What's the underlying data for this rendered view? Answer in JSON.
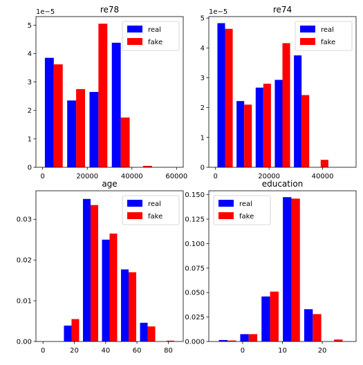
{
  "figure": {
    "background": "#ffffff"
  },
  "chart_data": [
    {
      "type": "bar",
      "title": "re78",
      "xlabel": "",
      "ylabel": "",
      "offset_text": "1e−5",
      "xlim": [
        -3000,
        63000
      ],
      "ylim": [
        0,
        5.3
      ],
      "xticks": [
        0,
        20000,
        40000,
        60000
      ],
      "xtick_labels": [
        "0",
        "20000",
        "40000",
        "60000"
      ],
      "yticks": [
        0,
        1,
        2,
        3,
        4,
        5
      ],
      "ytick_labels": [
        "0",
        "1",
        "2",
        "3",
        "4",
        "5"
      ],
      "bin_edges": [
        0,
        10000,
        20000,
        30000,
        40000,
        50000,
        60000
      ],
      "legend_position": "upper right",
      "series": [
        {
          "name": "real",
          "color": "#0000ff",
          "values": [
            3.85,
            2.35,
            2.65,
            4.38,
            0,
            0
          ]
        },
        {
          "name": "fake",
          "color": "#ff0000",
          "values": [
            3.62,
            2.75,
            5.05,
            1.75,
            0.05,
            0
          ]
        }
      ]
    },
    {
      "type": "bar",
      "title": "re74",
      "xlabel": "",
      "ylabel": "",
      "offset_text": "1e−5",
      "xlim": [
        -2500,
        52500
      ],
      "ylim": [
        0,
        5.05
      ],
      "xticks": [
        0,
        20000,
        40000
      ],
      "xtick_labels": [
        "0",
        "20000",
        "40000"
      ],
      "yticks": [
        0,
        1,
        2,
        3,
        4,
        5
      ],
      "ytick_labels": [
        "0",
        "1",
        "2",
        "3",
        "4",
        "5"
      ],
      "bin_edges": [
        0,
        7142.86,
        14285.71,
        21428.57,
        28571.43,
        35714.29,
        42857.14,
        50000
      ],
      "legend_position": "upper right",
      "series": [
        {
          "name": "real",
          "color": "#0000ff",
          "values": [
            4.83,
            2.22,
            2.67,
            2.93,
            3.75,
            0,
            0
          ]
        },
        {
          "name": "fake",
          "color": "#ff0000",
          "values": [
            4.64,
            2.1,
            2.8,
            4.16,
            2.42,
            0.25,
            0
          ]
        }
      ]
    },
    {
      "type": "bar",
      "title": "age",
      "xlabel": "",
      "ylabel": "",
      "offset_text": "",
      "xlim": [
        -4.5,
        89.5
      ],
      "ylim": [
        0,
        0.037
      ],
      "xticks": [
        0,
        20,
        40,
        60,
        80
      ],
      "xtick_labels": [
        "0",
        "20",
        "40",
        "60",
        "80"
      ],
      "yticks": [
        0,
        0.01,
        0.02,
        0.03
      ],
      "ytick_labels": [
        "0.00",
        "0.01",
        "0.02",
        "0.03"
      ],
      "bin_edges": [
        0,
        12.14,
        24.29,
        36.43,
        48.57,
        60.71,
        72.86,
        85
      ],
      "legend_position": "upper right",
      "series": [
        {
          "name": "real",
          "color": "#0000ff",
          "values": [
            0,
            0.0039,
            0.035,
            0.025,
            0.0177,
            0.0046,
            0
          ]
        },
        {
          "name": "fake",
          "color": "#ff0000",
          "values": [
            0,
            0.0055,
            0.0335,
            0.0265,
            0.017,
            0.0037,
            0.0002
          ]
        }
      ]
    },
    {
      "type": "bar",
      "title": "education",
      "xlabel": "",
      "ylabel": "",
      "offset_text": "",
      "xlim": [
        -8.5,
        28.5
      ],
      "ylim": [
        0,
        0.154
      ],
      "xticks": [
        0,
        10,
        20
      ],
      "xtick_labels": [
        "0",
        "10",
        "20"
      ],
      "yticks": [
        0,
        0.025,
        0.05,
        0.075,
        0.1,
        0.125,
        0.15
      ],
      "ytick_labels": [
        "0.000",
        "0.025",
        "0.050",
        "0.075",
        "0.100",
        "0.125",
        "0.150"
      ],
      "bin_edges": [
        -6.5,
        -1.14,
        4.21,
        9.57,
        14.93,
        20.29,
        25.64
      ],
      "legend_position": "upper left",
      "series": [
        {
          "name": "real",
          "color": "#0000ff",
          "values": [
            0.0015,
            0.0075,
            0.046,
            0.1475,
            0.033,
            0
          ]
        },
        {
          "name": "fake",
          "color": "#ff0000",
          "values": [
            0.001,
            0.0075,
            0.051,
            0.146,
            0.028,
            0.002
          ]
        }
      ]
    }
  ]
}
